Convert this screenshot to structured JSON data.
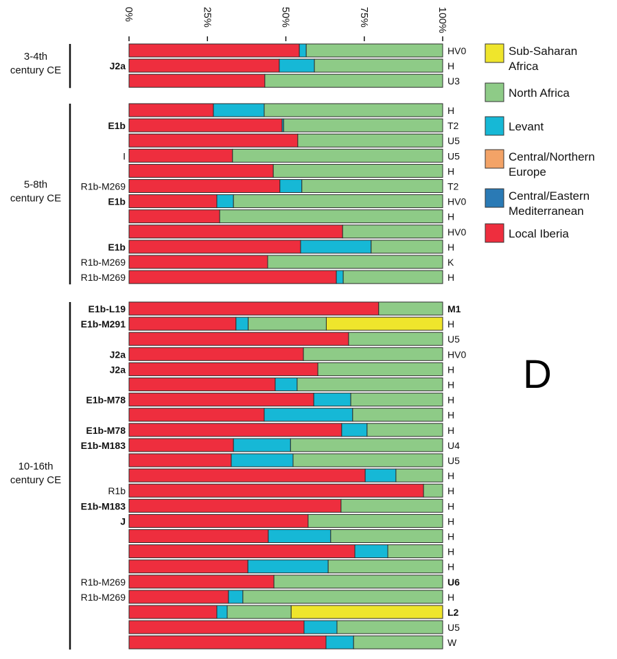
{
  "chart_data": {
    "type": "bar",
    "orientation": "horizontal-stacked-100",
    "panel_letter": "D",
    "xlim": [
      0,
      100
    ],
    "x_ticks": [
      "0%",
      "25%",
      "50%",
      "75%",
      "100%"
    ],
    "x_tick_values": [
      0,
      25,
      50,
      75,
      100
    ],
    "grid": false,
    "legend_position": "right",
    "components": [
      {
        "key": "ssa",
        "name": "Sub-Saharan Africa",
        "color": "#efe52c"
      },
      {
        "key": "na",
        "name": "North Africa",
        "color": "#8ecb87"
      },
      {
        "key": "lev",
        "name": "Levant",
        "color": "#16b8d6"
      },
      {
        "key": "cne",
        "name": "Central/Northern Europe",
        "color": "#f3a367"
      },
      {
        "key": "cem",
        "name": "Central/Eastern Mediterranean",
        "color": "#2a7ab5"
      },
      {
        "key": "ib",
        "name": "Local Iberia",
        "color": "#ee2e3e"
      }
    ],
    "stack_order": [
      "ib",
      "cem",
      "cne",
      "lev",
      "na",
      "ssa"
    ],
    "groups": [
      {
        "label": [
          "3-4th",
          "century CE"
        ],
        "rows": [
          {
            "y_label": "",
            "bold": false,
            "mt": "HV0",
            "mt_bold": false,
            "ib": 54.3,
            "lev": 2.2,
            "na": 43.5,
            "ssa": 0
          },
          {
            "y_label": "J2a",
            "bold": true,
            "mt": "H",
            "mt_bold": false,
            "ib": 47.9,
            "lev": 11.2,
            "na": 40.9,
            "ssa": 0
          },
          {
            "y_label": "",
            "bold": false,
            "mt": "U3",
            "mt_bold": false,
            "ib": 43.3,
            "lev": 0,
            "na": 56.7,
            "ssa": 0
          }
        ]
      },
      {
        "label": [
          "5-8th",
          "century CE"
        ],
        "rows": [
          {
            "y_label": "",
            "bold": false,
            "mt": "H",
            "mt_bold": false,
            "ib": 26.9,
            "lev": 16.2,
            "na": 56.9,
            "ssa": 0
          },
          {
            "y_label": "E1b",
            "bold": true,
            "mt": "T2",
            "mt_bold": false,
            "ib": 48.8,
            "lev": 0.5,
            "na": 50.7,
            "ssa": 0
          },
          {
            "y_label": "",
            "bold": false,
            "mt": "U5",
            "mt_bold": false,
            "ib": 53.8,
            "lev": 0,
            "na": 46.2,
            "ssa": 0
          },
          {
            "y_label": "I",
            "bold": false,
            "mt": "U5",
            "mt_bold": false,
            "ib": 33.0,
            "lev": 0,
            "na": 67.0,
            "ssa": 0
          },
          {
            "y_label": "",
            "bold": false,
            "mt": "H",
            "mt_bold": false,
            "ib": 46.0,
            "lev": 0,
            "na": 54.0,
            "ssa": 0
          },
          {
            "y_label": "R1b-M269",
            "bold": false,
            "mt": "T2",
            "mt_bold": false,
            "ib": 48.1,
            "lev": 7.0,
            "na": 44.9,
            "ssa": 0
          },
          {
            "y_label": "E1b",
            "bold": true,
            "mt": "HV0",
            "mt_bold": false,
            "ib": 28.0,
            "lev": 5.3,
            "na": 66.7,
            "ssa": 0
          },
          {
            "y_label": "",
            "bold": false,
            "mt": "H",
            "mt_bold": false,
            "ib": 28.9,
            "lev": 0,
            "na": 71.1,
            "ssa": 0
          },
          {
            "y_label": "",
            "bold": false,
            "mt": "HV0",
            "mt_bold": false,
            "ib": 68.1,
            "lev": 0,
            "na": 31.9,
            "ssa": 0
          },
          {
            "y_label": "E1b",
            "bold": true,
            "mt": "H",
            "mt_bold": false,
            "ib": 54.7,
            "lev": 22.5,
            "na": 22.8,
            "ssa": 0
          },
          {
            "y_label": "R1b-M269",
            "bold": false,
            "mt": "K",
            "mt_bold": false,
            "ib": 44.2,
            "lev": 0,
            "na": 55.8,
            "ssa": 0
          },
          {
            "y_label": "R1b-M269",
            "bold": false,
            "mt": "H",
            "mt_bold": false,
            "ib": 66.1,
            "lev": 2.2,
            "na": 31.7,
            "ssa": 0
          }
        ]
      },
      {
        "label": [
          "10-16th",
          "century CE"
        ],
        "rows": [
          {
            "y_label": "E1b-L19",
            "bold": true,
            "mt": "M1",
            "mt_bold": true,
            "ib": 79.6,
            "lev": 0,
            "na": 20.4,
            "ssa": 0
          },
          {
            "y_label": "E1b-M291",
            "bold": true,
            "mt": "H",
            "mt_bold": false,
            "ib": 34.1,
            "lev": 3.9,
            "na": 24.9,
            "ssa": 37.1
          },
          {
            "y_label": "",
            "bold": false,
            "mt": "U5",
            "mt_bold": false,
            "ib": 70.0,
            "lev": 0,
            "na": 30.0,
            "ssa": 0
          },
          {
            "y_label": "J2a",
            "bold": true,
            "mt": "HV0",
            "mt_bold": false,
            "ib": 55.6,
            "lev": 0,
            "na": 44.4,
            "ssa": 0
          },
          {
            "y_label": "J2a",
            "bold": true,
            "mt": "H",
            "mt_bold": false,
            "ib": 60.2,
            "lev": 0,
            "na": 39.8,
            "ssa": 0
          },
          {
            "y_label": "",
            "bold": false,
            "mt": "H",
            "mt_bold": false,
            "ib": 46.6,
            "lev": 7.0,
            "na": 46.4,
            "ssa": 0
          },
          {
            "y_label": "E1b-M78",
            "bold": true,
            "mt": "H",
            "mt_bold": false,
            "ib": 58.9,
            "lev": 11.8,
            "na": 29.3,
            "ssa": 0
          },
          {
            "y_label": "",
            "bold": false,
            "mt": "H",
            "mt_bold": false,
            "ib": 43.1,
            "lev": 28.2,
            "na": 28.7,
            "ssa": 0
          },
          {
            "y_label": "E1b-M78",
            "bold": true,
            "mt": "H",
            "mt_bold": false,
            "ib": 67.8,
            "lev": 8.1,
            "na": 24.1,
            "ssa": 0
          },
          {
            "y_label": "E1b-M183",
            "bold": true,
            "mt": "U4",
            "mt_bold": false,
            "ib": 33.3,
            "lev": 18.2,
            "na": 48.5,
            "ssa": 0
          },
          {
            "y_label": "",
            "bold": false,
            "mt": "U5",
            "mt_bold": false,
            "ib": 32.6,
            "lev": 19.7,
            "na": 47.7,
            "ssa": 0
          },
          {
            "y_label": "",
            "bold": false,
            "mt": "H",
            "mt_bold": false,
            "ib": 75.3,
            "lev": 9.8,
            "na": 14.9,
            "ssa": 0
          },
          {
            "y_label": "R1b",
            "bold": false,
            "mt": "H",
            "mt_bold": false,
            "ib": 93.9,
            "lev": 0,
            "na": 6.1,
            "ssa": 0
          },
          {
            "y_label": "E1b-M183",
            "bold": true,
            "mt": "H",
            "mt_bold": false,
            "ib": 67.6,
            "lev": 0,
            "na": 32.4,
            "ssa": 0
          },
          {
            "y_label": "J",
            "bold": true,
            "mt": "H",
            "mt_bold": false,
            "ib": 57.1,
            "lev": 0,
            "na": 42.9,
            "ssa": 0
          },
          {
            "y_label": "",
            "bold": false,
            "mt": "H",
            "mt_bold": false,
            "ib": 44.4,
            "lev": 19.9,
            "na": 35.7,
            "ssa": 0
          },
          {
            "y_label": "",
            "bold": false,
            "mt": "H",
            "mt_bold": false,
            "ib": 72.0,
            "lev": 10.5,
            "na": 17.5,
            "ssa": 0
          },
          {
            "y_label": "",
            "bold": false,
            "mt": "H",
            "mt_bold": false,
            "ib": 37.9,
            "lev": 25.6,
            "na": 36.5,
            "ssa": 0
          },
          {
            "y_label": "R1b-M269",
            "bold": false,
            "mt": "U6",
            "mt_bold": true,
            "ib": 46.2,
            "lev": 0,
            "na": 53.8,
            "ssa": 0
          },
          {
            "y_label": "R1b-M269",
            "bold": false,
            "mt": "H",
            "mt_bold": false,
            "ib": 31.7,
            "lev": 4.6,
            "na": 63.7,
            "ssa": 0
          },
          {
            "y_label": "",
            "bold": false,
            "mt": "L2",
            "mt_bold": true,
            "ib": 28.0,
            "lev": 3.3,
            "na": 20.4,
            "ssa": 48.3
          },
          {
            "y_label": "",
            "bold": false,
            "mt": "U5",
            "mt_bold": false,
            "ib": 55.8,
            "lev": 10.5,
            "na": 33.7,
            "ssa": 0
          },
          {
            "y_label": "",
            "bold": false,
            "mt": "W",
            "mt_bold": false,
            "ib": 62.8,
            "lev": 8.8,
            "na": 28.4,
            "ssa": 0
          }
        ]
      }
    ]
  }
}
